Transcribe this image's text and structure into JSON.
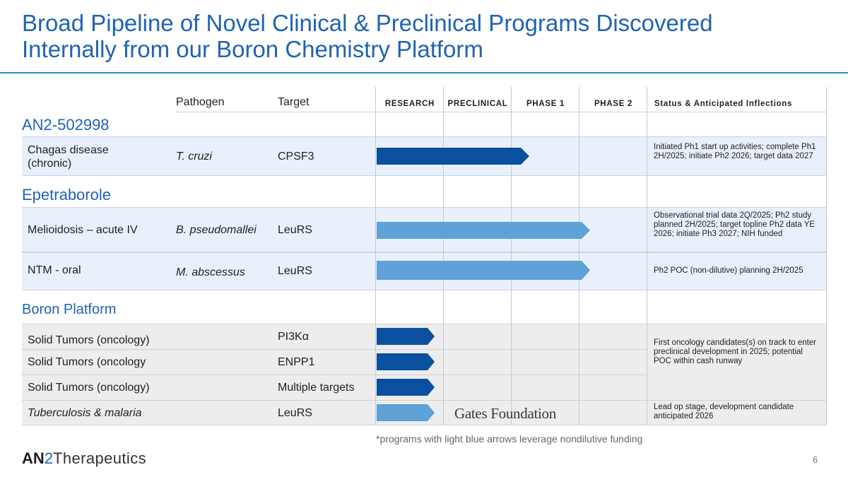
{
  "slide": {
    "title_line1": "Broad Pipeline of Novel Clinical & Preclinical Programs Discovered",
    "title_line2": "Internally from our Boron Chemistry Platform",
    "page_number": "6",
    "footnote": "*programs with light blue arrows leverage nondilutive funding",
    "partner_logo": "Gates Foundation",
    "company_logo": {
      "part1": "AN",
      "part2": "2",
      "part3": "Therapeutics"
    }
  },
  "colors": {
    "title_blue": "#1f63b4",
    "arrow_dark": "#0b4f9f",
    "arrow_light": "#5ea2d8",
    "band_blue": "#e9f0fb",
    "band_gray": "#ededed"
  },
  "columns": {
    "pathogen": "Pathogen",
    "target": "Target",
    "research": "RESEARCH",
    "preclinical": "PRECLINICAL",
    "phase1": "PHASE 1",
    "phase2": "PHASE 2",
    "status": "Status & Anticipated Inflections"
  },
  "sections": {
    "an2": "AN2-502998",
    "epetraborole": "Epetraborole",
    "boron": "Boron Platform"
  },
  "rows": [
    {
      "indication": "Chagas disease (chronic)",
      "pathogen": "T. cruzi",
      "target": "CPSF3",
      "stage": "Phase 1",
      "funding": "company",
      "status": "Initiated Ph1 start up activities; complete Ph1 2H/2025; initiate Ph2 2026; target data 2027"
    },
    {
      "indication": "Melioidosis – acute IV",
      "pathogen": "B. pseudomallei",
      "target": "LeuRS",
      "stage": "Phase 2",
      "funding": "nondilutive",
      "status": "Observational trial data 2Q/2025; Ph2 study planned 2H/2025; target topline Ph2 data YE 2026; initiate Ph3 2027; NIH funded"
    },
    {
      "indication": "NTM - oral",
      "pathogen": "M. abscessus",
      "target": "LeuRS",
      "stage": "Phase 2",
      "funding": "nondilutive",
      "status": "Ph2 POC (non-dilutive) planning 2H/2025"
    },
    {
      "indication": "Solid Tumors (oncology)",
      "pathogen": "",
      "target": "PI3Kα",
      "stage": "Research",
      "funding": "company",
      "status": ""
    },
    {
      "indication": "Solid Tumors (oncology",
      "pathogen": "",
      "target": "ENPP1",
      "stage": "Research",
      "funding": "company",
      "status": ""
    },
    {
      "indication": "Solid Tumors (oncology)",
      "pathogen": "",
      "target": "Multiple targets",
      "stage": "Research",
      "funding": "company",
      "status": ""
    },
    {
      "indication": "Tuberculosis & malaria",
      "pathogen": "",
      "target": "LeuRS",
      "stage": "Research",
      "funding": "nondilutive",
      "status": "Lead op stage, development candidate anticipated 2026"
    }
  ],
  "oncology_status": "First oncology candidates(s) on track to enter preclinical development in 2025; potential POC within cash runway"
}
